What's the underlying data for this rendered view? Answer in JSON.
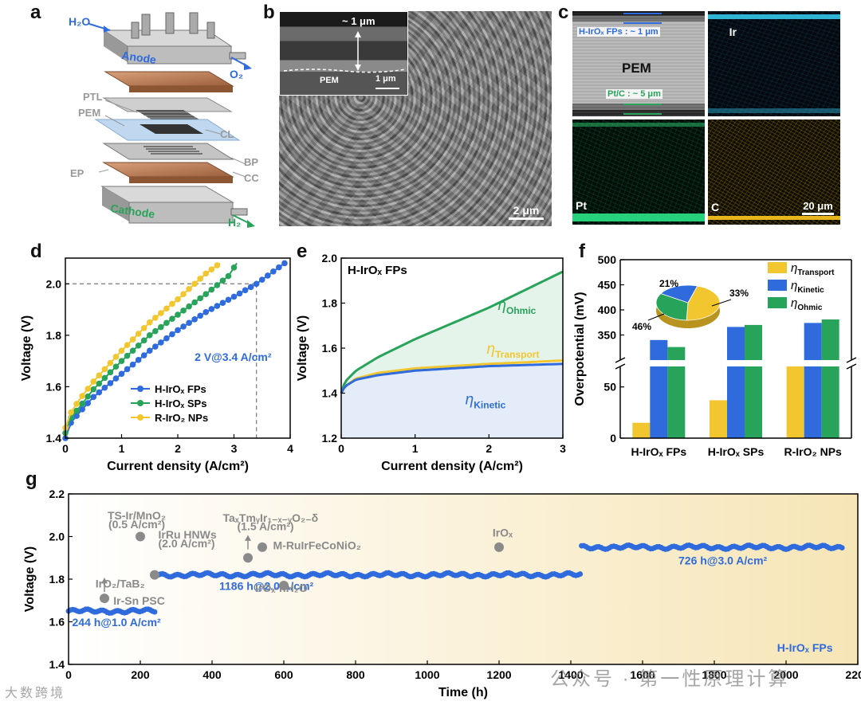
{
  "panel_labels": [
    "a",
    "b",
    "c",
    "d",
    "e",
    "f",
    "g"
  ],
  "panel_a": {
    "labels": {
      "h2o": "H₂O",
      "anode": "Anode",
      "o2": "O₂",
      "ptl": "PTL",
      "pem": "PEM",
      "cl": "CL",
      "bp": "BP",
      "ep": "EP",
      "cc": "CC",
      "cathode": "Cathode",
      "h2": "H₂"
    }
  },
  "panel_b": {
    "thickness": "~ 1 μm",
    "pem": "PEM",
    "inset_scale": "1 μm",
    "scale": "2 μm"
  },
  "panel_c": {
    "fps_label": "H-IrOₓ FPs : ~ 1 μm",
    "pem": "PEM",
    "ptc_label": "Pt/C : ~ 5 μm",
    "ir": "Ir",
    "pt": "Pt",
    "c": "C",
    "scale": "20 μm"
  },
  "colors": {
    "blue": "#2f6bdc",
    "green": "#28a35a",
    "yellow": "#f2c62e",
    "grey": "#8a8a8a",
    "light_blue_fill": "#e3ecf8",
    "light_green_fill": "#e5f4ea"
  },
  "chart_data": [
    {
      "id": "d",
      "type": "line",
      "xlabel": "Current density (A/cm²)",
      "ylabel": "Voltage (V)",
      "xlim": [
        0,
        4
      ],
      "ylim": [
        1.4,
        2.1
      ],
      "xticks": [
        "0",
        "1",
        "2",
        "3",
        "4"
      ],
      "yticks": [
        "1.4",
        "1.6",
        "1.8",
        "2.0"
      ],
      "annotation": "2 V@3.4 A/cm²",
      "series": [
        {
          "name": "H-IrOₓ FPs",
          "color": "#2f6bdc",
          "points": [
            [
              0,
              1.4
            ],
            [
              0.1,
              1.46
            ],
            [
              0.25,
              1.5
            ],
            [
              0.5,
              1.56
            ],
            [
              1,
              1.65
            ],
            [
              1.5,
              1.74
            ],
            [
              2,
              1.82
            ],
            [
              2.5,
              1.89
            ],
            [
              3,
              1.95
            ],
            [
              3.4,
              2.0
            ],
            [
              3.9,
              2.08
            ]
          ]
        },
        {
          "name": "H-IrOₓ SPs",
          "color": "#28a35a",
          "points": [
            [
              0,
              1.42
            ],
            [
              0.1,
              1.48
            ],
            [
              0.25,
              1.52
            ],
            [
              0.5,
              1.59
            ],
            [
              1,
              1.7
            ],
            [
              1.5,
              1.8
            ],
            [
              2,
              1.88
            ],
            [
              2.5,
              1.96
            ],
            [
              2.9,
              2.03
            ],
            [
              3.05,
              2.08
            ]
          ]
        },
        {
          "name": "R-IrO₂ NPs",
          "color": "#f2c62e",
          "points": [
            [
              0,
              1.44
            ],
            [
              0.1,
              1.5
            ],
            [
              0.25,
              1.55
            ],
            [
              0.5,
              1.62
            ],
            [
              1,
              1.74
            ],
            [
              1.5,
              1.85
            ],
            [
              2,
              1.94
            ],
            [
              2.5,
              2.04
            ],
            [
              2.75,
              2.08
            ]
          ]
        }
      ]
    },
    {
      "id": "e",
      "type": "area",
      "title": "H-IrOₓ FPs",
      "xlabel": "Current density (A/cm²)",
      "ylabel": "Voltage (V)",
      "xlim": [
        0,
        3
      ],
      "ylim": [
        1.2,
        2.0
      ],
      "xticks": [
        "0",
        "1",
        "2",
        "3"
      ],
      "yticks": [
        "1.2",
        "1.4",
        "1.6",
        "1.8",
        "2.0"
      ],
      "series": [
        {
          "name": "ηKinetic",
          "color": "#2f6bdc",
          "points": [
            [
              0,
              1.4
            ],
            [
              0.05,
              1.43
            ],
            [
              0.2,
              1.46
            ],
            [
              0.5,
              1.48
            ],
            [
              1,
              1.5
            ],
            [
              1.5,
              1.51
            ],
            [
              2,
              1.52
            ],
            [
              2.5,
              1.525
            ],
            [
              3,
              1.53
            ]
          ]
        },
        {
          "name": "ηTransport",
          "color": "#f2c62e",
          "points": [
            [
              0,
              1.4
            ],
            [
              0.05,
              1.43
            ],
            [
              0.2,
              1.465
            ],
            [
              0.5,
              1.49
            ],
            [
              1,
              1.51
            ],
            [
              1.5,
              1.52
            ],
            [
              2,
              1.53
            ],
            [
              2.5,
              1.537
            ],
            [
              3,
              1.545
            ]
          ]
        },
        {
          "name": "ηOhmic",
          "color": "#28a35a",
          "points": [
            [
              0,
              1.4
            ],
            [
              0.05,
              1.45
            ],
            [
              0.2,
              1.5
            ],
            [
              0.5,
              1.56
            ],
            [
              1,
              1.64
            ],
            [
              1.5,
              1.71
            ],
            [
              2,
              1.78
            ],
            [
              2.5,
              1.86
            ],
            [
              3,
              1.94
            ]
          ]
        }
      ],
      "region_labels": {
        "ohmic": "η",
        "ohmic_sub": "Ohmic",
        "transport": "η",
        "transport_sub": "Transport",
        "kinetic": "η",
        "kinetic_sub": "Kinetic"
      }
    },
    {
      "id": "f",
      "type": "bar",
      "ylabel": "Overpotential (mV)",
      "categories": [
        "H-IrOₓ FPs",
        "H-IrOₓ SPs",
        "R-IrO₂ NPs"
      ],
      "yticks_low": [
        "0",
        "50"
      ],
      "yticks_high": [
        "350",
        "400",
        "450",
        "500"
      ],
      "series": [
        {
          "name": "ηTransport",
          "sub": "Transport",
          "color": "#f2c62e",
          "values": [
            15,
            37,
            92
          ]
        },
        {
          "name": "ηKinetic",
          "sub": "Kinetic",
          "color": "#2f6bdc",
          "values": [
            340,
            366,
            374
          ]
        },
        {
          "name": "ηOhmic",
          "sub": "Ohmic",
          "color": "#28a35a",
          "values": [
            326,
            370,
            381
          ]
        }
      ],
      "pie": {
        "values": [
          46,
          33,
          21
        ],
        "labels": [
          "46%",
          "33%",
          "21%"
        ],
        "colors": [
          "#f2c62e",
          "#28a35a",
          "#2f6bdc"
        ]
      }
    },
    {
      "id": "g",
      "type": "scatter",
      "xlabel": "Time (h)",
      "ylabel": "Voltage (V)",
      "xlim": [
        0,
        2200
      ],
      "ylim": [
        1.4,
        2.2
      ],
      "xticks": [
        "0",
        "200",
        "400",
        "600",
        "800",
        "1000",
        "1200",
        "1400",
        "1600",
        "1800",
        "2000",
        "2200"
      ],
      "yticks": [
        "1.4",
        "1.6",
        "1.8",
        "2.0",
        "2.2"
      ],
      "segments": [
        {
          "label": "244 h@1.0 A/cm²",
          "from": 0,
          "to": 244,
          "voltage": 1.65
        },
        {
          "label": "1186 h@2.0 A/cm²",
          "from": 244,
          "to": 1430,
          "voltage": 1.82
        },
        {
          "label": "726 h@3.0 A/cm²",
          "from": 1430,
          "to": 2156,
          "voltage": 1.95
        }
      ],
      "series_label": "H-IrOₓ FPs",
      "references": [
        {
          "name": "IrO₂/TaB₂",
          "x": 100,
          "y": 1.71
        },
        {
          "name": "Ir-Sn PSC",
          "x": 100,
          "y": 1.71
        },
        {
          "name": "TS-Ir/MnO₂",
          "x": 200,
          "y": 2.0
        },
        {
          "name": "(0.5 A/cm²)",
          "x": 200,
          "y": 2.0
        },
        {
          "name": "IrRu HNWs",
          "x": 240,
          "y": 1.82
        },
        {
          "name": "(2.0 A/cm²)",
          "x": 240,
          "y": 1.82
        },
        {
          "name": "TaₓTmᵧIr₁₋ₓ₋ᵧO₂₋δ",
          "x": 500,
          "y": 1.9
        },
        {
          "name": "(1.5 A/cm²)",
          "x": 500,
          "y": 1.9
        },
        {
          "name": "M-RuIrFeCoNiO₂",
          "x": 540,
          "y": 1.95
        },
        {
          "name": "IrOₓ·nH₂O",
          "x": 600,
          "y": 1.77
        },
        {
          "name": "IrOₓ",
          "x": 1200,
          "y": 1.95
        }
      ]
    }
  ],
  "watermark": {
    "left": "大数跨境",
    "right": "公众号 · 第一性原理计算"
  }
}
